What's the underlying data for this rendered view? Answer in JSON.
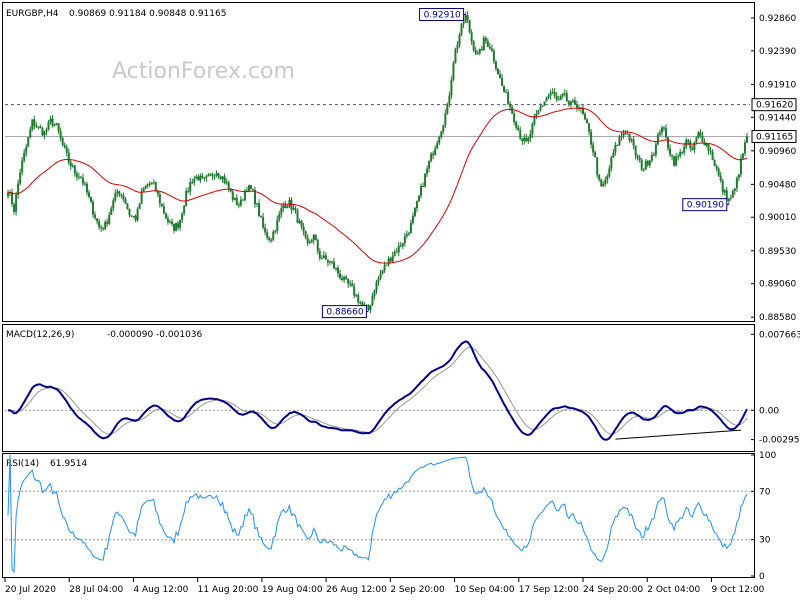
{
  "header": {
    "title": "EURGBP,H4",
    "ohlc": "0.90869 0.91184 0.90848 0.91165"
  },
  "watermark": "ActionForex.com",
  "colors": {
    "candle": "#1f7a30",
    "ma": "#dd0000",
    "macd": "#00008b",
    "signal": "#999999",
    "rsi": "#1e90ff",
    "level": "#555555"
  },
  "chart_data": [
    {
      "type": "candlestick",
      "title": "EURGBP,H4",
      "x_ticks": [
        "20 Jul 2020",
        "28 Jul 04:00",
        "4 Aug 12:00",
        "11 Aug 20:00",
        "19 Aug 04:00",
        "26 Aug 12:00",
        "2 Sep 20:00",
        "10 Sep 04:00",
        "17 Sep 12:00",
        "24 Sep 20:00",
        "2 Oct 04:00",
        "9 Oct 12:00"
      ],
      "y_ticks": [
        "0.92860",
        "0.92390",
        "0.91910",
        "0.91440",
        "0.90960",
        "0.90480",
        "0.90010",
        "0.89530",
        "0.89060",
        "0.88580"
      ],
      "ylim": [
        0.8854,
        0.9306
      ],
      "last_price": "0.91165",
      "horizontal_level": "0.91620",
      "annotations": [
        "0.92910",
        "0.88660",
        "0.90190"
      ],
      "ma_series": "moving average (red)",
      "close_series": [
        0.9042,
        0.9012,
        0.9068,
        0.9102,
        0.9138,
        0.9128,
        0.9121,
        0.9139,
        0.913,
        0.9102,
        0.908,
        0.9065,
        0.9058,
        0.9034,
        0.9008,
        0.8985,
        0.899,
        0.9018,
        0.904,
        0.9028,
        0.9003,
        0.9,
        0.9038,
        0.905,
        0.9045,
        0.902,
        0.8998,
        0.8985,
        0.8992,
        0.9028,
        0.9054,
        0.9059,
        0.9052,
        0.9058,
        0.9068,
        0.906,
        0.9045,
        0.9025,
        0.9018,
        0.9045,
        0.9038,
        0.901,
        0.8978,
        0.897,
        0.8992,
        0.9018,
        0.9022,
        0.9008,
        0.8985,
        0.896,
        0.8975,
        0.8946,
        0.894,
        0.8935,
        0.8922,
        0.891,
        0.8902,
        0.8888,
        0.8875,
        0.8868,
        0.89,
        0.892,
        0.8935,
        0.8948,
        0.8958,
        0.8972,
        0.899,
        0.902,
        0.9052,
        0.908,
        0.9105,
        0.913,
        0.916,
        0.923,
        0.9265,
        0.929,
        0.925,
        0.923,
        0.9255,
        0.9245,
        0.9215,
        0.9185,
        0.9165,
        0.914,
        0.9115,
        0.9105,
        0.9135,
        0.9155,
        0.917,
        0.918,
        0.9165,
        0.9175,
        0.916,
        0.9165,
        0.915,
        0.9125,
        0.909,
        0.904,
        0.9055,
        0.909,
        0.9112,
        0.9126,
        0.911,
        0.9085,
        0.907,
        0.9085,
        0.91,
        0.9135,
        0.9105,
        0.908,
        0.909,
        0.911,
        0.9095,
        0.912,
        0.911,
        0.9095,
        0.907,
        0.904,
        0.9025,
        0.904,
        0.908,
        0.9116
      ]
    },
    {
      "type": "line",
      "title": "MACD(12,26,9)",
      "values_text": "-0.000090 -0.001036",
      "y_ticks": [
        "0.007663",
        "0.00",
        "-0.002952"
      ],
      "ylim": [
        -0.004,
        0.0085
      ]
    },
    {
      "type": "line",
      "title": "RSI(14)",
      "values_text": "61.9514",
      "y_ticks": [
        "100",
        "70",
        "30",
        "0"
      ],
      "ylim": [
        0,
        100
      ],
      "levels": [
        70,
        30
      ]
    }
  ]
}
